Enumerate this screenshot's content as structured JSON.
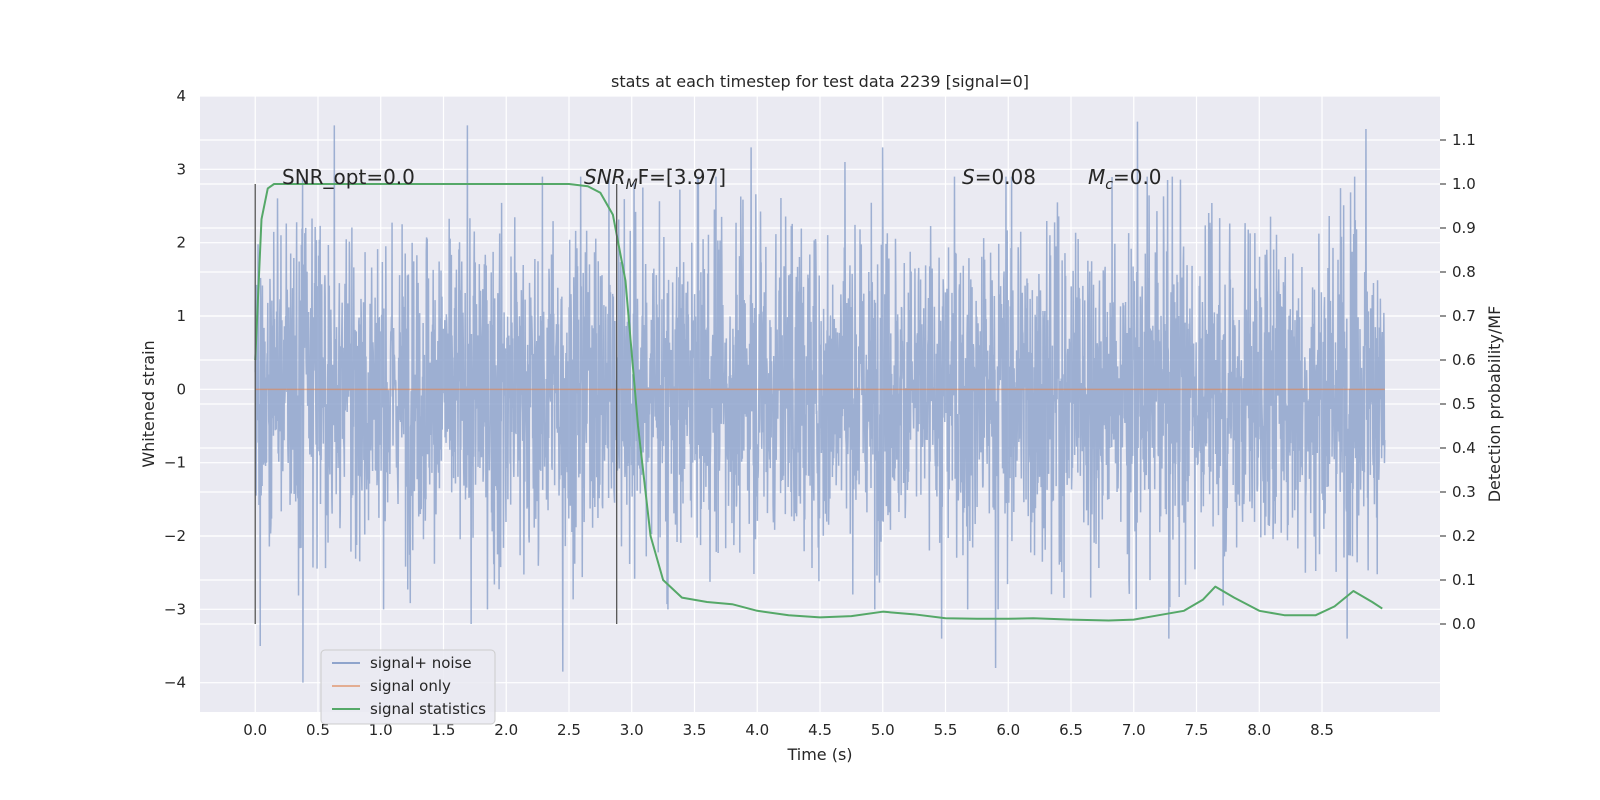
{
  "chart_data": {
    "type": "line",
    "title": "stats at each timestep for test data 2239 [signal=0]",
    "xlabel": "Time (s)",
    "ylabel": "Whitened strain",
    "ylabel_right": "Detection probability/MF",
    "xlim": [
      -0.44,
      9.44
    ],
    "ylim": [
      -4.4,
      4.0
    ],
    "ylim_right": [
      -0.2,
      1.2
    ],
    "x_ticks": [
      "0.0",
      "0.5",
      "1.0",
      "1.5",
      "2.0",
      "2.5",
      "3.0",
      "3.5",
      "4.0",
      "4.5",
      "5.0",
      "5.5",
      "6.0",
      "6.5",
      "7.0",
      "7.5",
      "8.0",
      "8.5"
    ],
    "y_ticks": [
      "4",
      "3",
      "2",
      "1",
      "0",
      "−1",
      "−2",
      "−3",
      "−4"
    ],
    "y_ticks_right": [
      "1.1",
      "1.0",
      "0.9",
      "0.8",
      "0.7",
      "0.6",
      "0.5",
      "0.4",
      "0.3",
      "0.2",
      "0.1",
      "0.0"
    ],
    "grid": true,
    "legend_position": "lower-left",
    "annotations": {
      "snr_opt": "SNR_opt=0.0",
      "snr_mf_prefix": "SNR",
      "snr_mf_sub": "M",
      "snr_mf_suffix": "F=[3.97]",
      "s_prefix": "S",
      "s_suffix": "=0.08",
      "mc_prefix": "M",
      "mc_sub": "c",
      "mc_suffix": "=0.0"
    },
    "vertical_lines": [
      {
        "x": 0.0,
        "y_range": [
          -3.2,
          2.8
        ]
      },
      {
        "x": 2.88,
        "y_range": [
          -3.2,
          2.8
        ]
      }
    ],
    "series": [
      {
        "name": "signal+ noise",
        "color": "#8fa4cc",
        "kind": "noise",
        "x_range": [
          0.0,
          9.0
        ],
        "typical_amplitude": [
          -1.8,
          1.8
        ],
        "peak_values": [
          {
            "x": 0.04,
            "y": -3.5
          },
          {
            "x": 0.38,
            "y": -4.0
          },
          {
            "x": 0.63,
            "y": 3.6
          },
          {
            "x": 1.69,
            "y": 3.6
          },
          {
            "x": 1.72,
            "y": -3.2
          },
          {
            "x": 2.45,
            "y": -3.85
          },
          {
            "x": 3.95,
            "y": 3.3
          },
          {
            "x": 4.7,
            "y": 3.1
          },
          {
            "x": 5.0,
            "y": 3.3
          },
          {
            "x": 5.47,
            "y": -3.4
          },
          {
            "x": 5.9,
            "y": -3.8
          },
          {
            "x": 7.03,
            "y": 3.65
          },
          {
            "x": 7.28,
            "y": -3.4
          },
          {
            "x": 8.85,
            "y": 3.55
          },
          {
            "x": 8.7,
            "y": -3.4
          }
        ]
      },
      {
        "name": "signal only",
        "color": "#dd8452",
        "x": [
          0.0,
          9.0
        ],
        "y": [
          0.0,
          0.0
        ]
      },
      {
        "name": "signal statistics",
        "color": "#55a868",
        "axis": "right",
        "x": [
          0.0,
          0.05,
          0.1,
          0.15,
          0.2,
          0.3,
          0.5,
          1.0,
          1.5,
          2.0,
          2.5,
          2.65,
          2.75,
          2.85,
          2.95,
          3.05,
          3.15,
          3.25,
          3.4,
          3.6,
          3.8,
          4.0,
          4.25,
          4.5,
          4.75,
          5.0,
          5.25,
          5.5,
          5.75,
          6.0,
          6.2,
          6.5,
          6.8,
          7.0,
          7.2,
          7.4,
          7.55,
          7.65,
          7.8,
          8.0,
          8.2,
          8.45,
          8.6,
          8.75,
          8.9,
          8.98
        ],
        "y": [
          0.6,
          0.92,
          0.99,
          1.0,
          1.0,
          1.0,
          1.0,
          1.0,
          1.0,
          1.0,
          1.0,
          0.995,
          0.98,
          0.93,
          0.78,
          0.45,
          0.2,
          0.1,
          0.06,
          0.05,
          0.045,
          0.03,
          0.02,
          0.015,
          0.018,
          0.028,
          0.022,
          0.013,
          0.012,
          0.012,
          0.013,
          0.01,
          0.008,
          0.01,
          0.02,
          0.03,
          0.055,
          0.085,
          0.06,
          0.03,
          0.02,
          0.02,
          0.04,
          0.075,
          0.05,
          0.035
        ]
      }
    ]
  }
}
